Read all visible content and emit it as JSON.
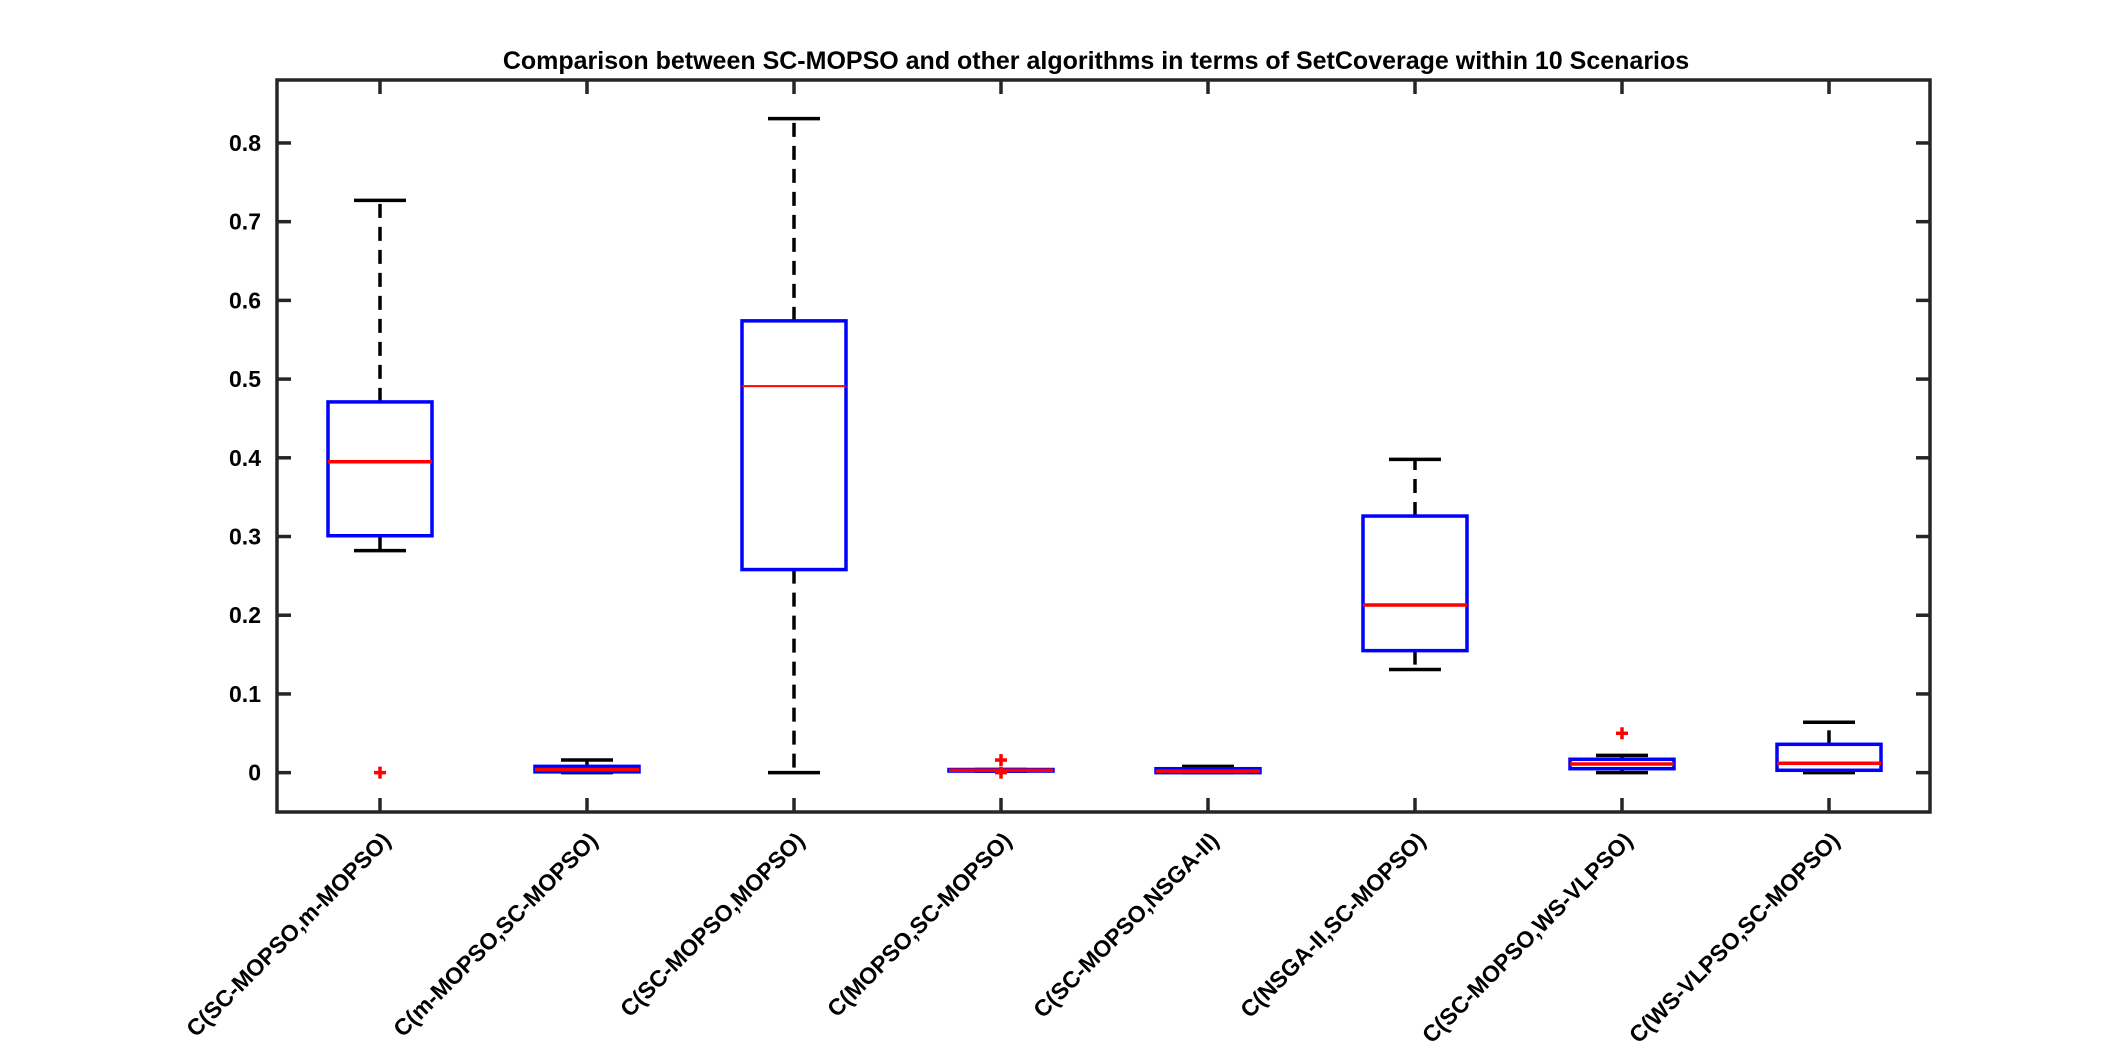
{
  "chart_data": {
    "type": "box",
    "title": "Comparison between SC-MOPSO and other algorithms in terms of SetCoverage within 10 Scenarios",
    "xlabel": "",
    "ylabel": "",
    "ylim": [
      -0.05,
      0.88
    ],
    "yticks": [
      0,
      0.1,
      0.2,
      0.3,
      0.4,
      0.5,
      0.6,
      0.7,
      0.8
    ],
    "ytick_labels": [
      "0",
      "0.1",
      "0.2",
      "0.3",
      "0.4",
      "0.5",
      "0.6",
      "0.7",
      "0.8"
    ],
    "grid": false,
    "categories": [
      "C(SC-MOPSO,m-MOPSO)",
      "C(m-MOPSO,SC-MOPSO)",
      "C(SC-MOPSO,MOPSO)",
      "C(MOPSO,SC-MOPSO)",
      "C(SC-MOPSO,NSGA-II)",
      "C(NSGA-II,SC-MOPSO)",
      "C(SC-MOPSO,WS-VLPSO)",
      "C(WS-VLPSO,SC-MOPSO)"
    ],
    "boxes": [
      {
        "whisker_low": 0.282,
        "q1": 0.301,
        "median": 0.395,
        "q3": 0.471,
        "whisker_high": 0.727,
        "outliers": [
          0.0
        ]
      },
      {
        "whisker_low": 0.0,
        "q1": 0.001,
        "median": 0.004,
        "q3": 0.008,
        "whisker_high": 0.016,
        "outliers": []
      },
      {
        "whisker_low": 0.0,
        "q1": 0.258,
        "median": 0.491,
        "q3": 0.574,
        "whisker_high": 0.831,
        "outliers": []
      },
      {
        "whisker_low": 0.002,
        "q1": 0.002,
        "median": 0.003,
        "q3": 0.004,
        "whisker_high": 0.004,
        "outliers": [
          0.016,
          0.0
        ]
      },
      {
        "whisker_low": 0.0,
        "q1": 0.0,
        "median": 0.002,
        "q3": 0.005,
        "whisker_high": 0.008,
        "outliers": []
      },
      {
        "whisker_low": 0.131,
        "q1": 0.155,
        "median": 0.213,
        "q3": 0.326,
        "whisker_high": 0.398,
        "outliers": []
      },
      {
        "whisker_low": 0.0,
        "q1": 0.005,
        "median": 0.011,
        "q3": 0.017,
        "whisker_high": 0.022,
        "outliers": [
          0.05
        ]
      },
      {
        "whisker_low": 0.0,
        "q1": 0.003,
        "median": 0.012,
        "q3": 0.036,
        "whisker_high": 0.064,
        "outliers": []
      }
    ],
    "colors": {
      "box": "#0000ff",
      "median": "#ff0000",
      "whisker": "#000000",
      "outlier": "#ff0000",
      "axes": "#262626"
    }
  }
}
